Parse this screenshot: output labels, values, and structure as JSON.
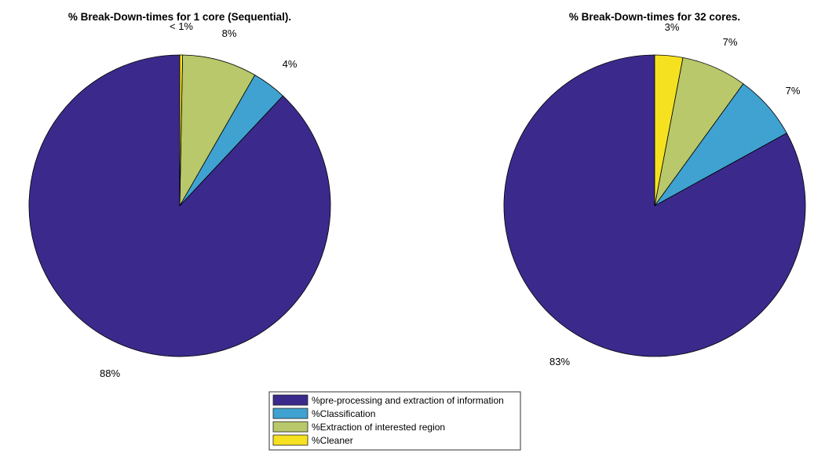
{
  "chart_data": [
    {
      "type": "pie",
      "title": "% Break-Down-times for 1 core (Sequential).",
      "categories": [
        "%pre-processing and extraction of information",
        "%Classification",
        "%Extraction of interested region",
        "%Cleaner"
      ],
      "values": [
        88,
        3.7,
        8,
        0.3
      ],
      "labels": [
        "88%",
        "4%",
        "8%",
        "< 1%"
      ]
    },
    {
      "type": "pie",
      "title": "% Break-Down-times for 32 cores.",
      "categories": [
        "%pre-processing and extraction of information",
        "%Classification",
        "%Extraction of interested region",
        "%Cleaner"
      ],
      "values": [
        83,
        7,
        7,
        3
      ],
      "labels": [
        "83%",
        "7%",
        "7%",
        "3%"
      ]
    }
  ],
  "legend": {
    "placement": "bottom-center",
    "items": [
      {
        "label": "%pre-processing and extraction of information",
        "color": "#3b2a8c"
      },
      {
        "label": "%Classification",
        "color": "#40a2d0"
      },
      {
        "label": "%Extraction of interested region",
        "color": "#b8c86a"
      },
      {
        "label": "%Cleaner",
        "color": "#f5e120"
      }
    ]
  },
  "colors": [
    "#3b2a8c",
    "#40a2d0",
    "#b8c86a",
    "#f5e120"
  ]
}
